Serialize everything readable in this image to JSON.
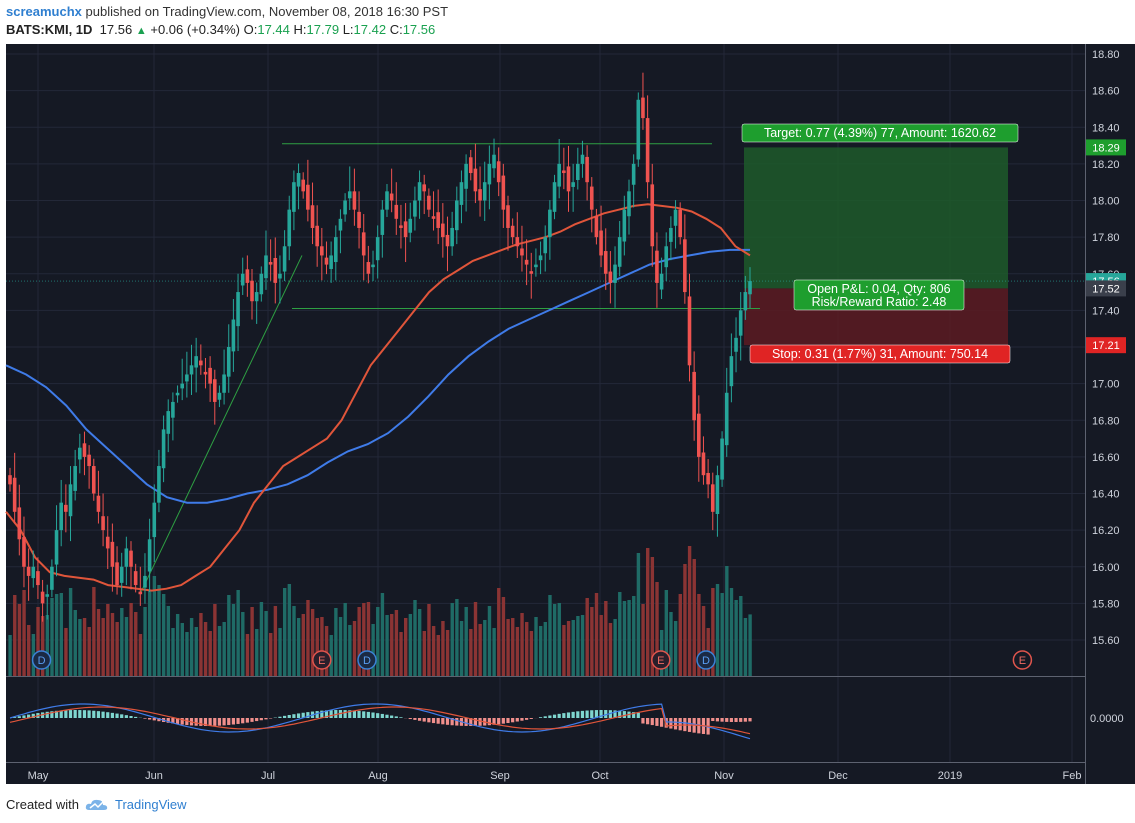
{
  "header": {
    "user": "screamuchx",
    "published": " published on TradingView.com, November 08, 2018 16:30 PST",
    "symbol": "BATS:KMI, 1D",
    "last": "17.56",
    "change": "+0.06 (+0.34%)",
    "o_label": "O:",
    "o": "17.44",
    "h_label": "H:",
    "h": "17.79",
    "l_label": "L:",
    "l": "17.42",
    "c_label": "C:",
    "c": "17.56"
  },
  "footer": {
    "created": "Created with",
    "brand": "TradingView"
  },
  "colors": {
    "background": "#151924",
    "grid": "#232838",
    "up": "#26a69a",
    "down": "#ef5350",
    "vol_up": "#1f6b66",
    "vol_down": "#8b3434",
    "ma_fast": "#e0553a",
    "ma_slow": "#3f7be8",
    "target_zone": "#1d5b2a",
    "stop_zone": "#5c1b22",
    "trendline": "#2ea043"
  },
  "chart_data": {
    "type": "candlestick",
    "symbol": "BATS:KMI",
    "interval": "1D",
    "ylim": [
      15.4,
      18.86
    ],
    "y_ticks": [
      "18.80",
      "18.60",
      "18.40",
      "18.20",
      "18.00",
      "17.80",
      "17.60",
      "17.40",
      "17.20",
      "17.00",
      "16.80",
      "16.60",
      "16.40",
      "16.20",
      "16.00",
      "15.80",
      "15.60"
    ],
    "x_ticks": [
      "May",
      "Jun",
      "Jul",
      "Aug",
      "Sep",
      "Oct",
      "Nov",
      "Dec",
      "2019",
      "Feb"
    ],
    "close_series": [
      16.45,
      16.3,
      16.15,
      16.0,
      15.95,
      16.0,
      15.9,
      15.8,
      15.85,
      16.0,
      16.2,
      16.35,
      16.3,
      16.45,
      16.55,
      16.65,
      16.6,
      16.55,
      16.4,
      16.3,
      16.2,
      16.1,
      16.0,
      15.9,
      16.0,
      16.1,
      16.0,
      15.9,
      15.85,
      15.95,
      16.15,
      16.35,
      16.55,
      16.75,
      16.85,
      16.9,
      16.95,
      17.0,
      17.05,
      17.1,
      17.15,
      17.1,
      17.05,
      17.0,
      16.9,
      16.95,
      17.05,
      17.2,
      17.35,
      17.5,
      17.6,
      17.55,
      17.45,
      17.5,
      17.6,
      17.7,
      17.65,
      17.55,
      17.6,
      17.75,
      17.95,
      18.1,
      18.15,
      18.05,
      17.95,
      17.85,
      17.75,
      17.7,
      17.65,
      17.7,
      17.8,
      17.9,
      18.0,
      18.05,
      17.95,
      17.85,
      17.7,
      17.6,
      17.65,
      17.8,
      17.95,
      18.05,
      18.0,
      17.9,
      17.85,
      17.8,
      17.9,
      18.0,
      18.1,
      18.05,
      17.95,
      17.9,
      17.85,
      17.8,
      17.75,
      17.85,
      18.0,
      18.1,
      18.2,
      18.15,
      18.05,
      18.0,
      18.1,
      18.2,
      18.25,
      18.1,
      17.95,
      17.85,
      17.8,
      17.75,
      17.7,
      17.65,
      17.6,
      17.65,
      17.7,
      17.8,
      17.95,
      18.1,
      18.2,
      18.15,
      18.05,
      18.1,
      18.2,
      18.25,
      18.1,
      17.95,
      17.8,
      17.7,
      17.6,
      17.55,
      17.65,
      17.8,
      17.95,
      18.05,
      18.2,
      18.55,
      18.45,
      18.1,
      17.75,
      17.55,
      17.6,
      17.75,
      17.85,
      17.95,
      17.8,
      17.5,
      17.1,
      16.8,
      16.6,
      16.5,
      16.45,
      16.3,
      16.5,
      16.7,
      16.95,
      17.15,
      17.25,
      17.4,
      17.5,
      17.56
    ],
    "moving_average_fast": [
      16.3,
      16.2,
      16.05,
      15.97,
      15.95,
      15.94,
      15.93,
      15.9,
      15.89,
      15.88,
      15.87,
      15.88,
      15.9,
      15.95,
      16.0,
      16.1,
      16.2,
      16.35,
      16.45,
      16.55,
      16.6,
      16.65,
      16.7,
      16.8,
      16.95,
      17.1,
      17.2,
      17.3,
      17.4,
      17.5,
      17.57,
      17.62,
      17.67,
      17.7,
      17.73,
      17.76,
      17.78,
      17.8,
      17.83,
      17.87,
      17.9,
      17.93,
      17.95,
      17.97,
      17.98,
      17.97,
      17.96,
      17.94,
      17.9,
      17.85,
      17.75,
      17.7
    ],
    "moving_average_slow": [
      17.1,
      17.05,
      16.98,
      16.88,
      16.75,
      16.65,
      16.55,
      16.45,
      16.38,
      16.35,
      16.35,
      16.37,
      16.4,
      16.42,
      16.45,
      16.5,
      16.57,
      16.63,
      16.67,
      16.73,
      16.82,
      16.93,
      17.05,
      17.15,
      17.23,
      17.3,
      17.35,
      17.4,
      17.45,
      17.5,
      17.55,
      17.6,
      17.65,
      17.68,
      17.7,
      17.72,
      17.73,
      17.73
    ],
    "annotations": {
      "target_label": "Target: 0.77 (4.39%) 77, Amount: 1620.62",
      "target_price": "18.29",
      "stop_label": "Stop: 0.31 (1.77%) 31, Amount: 750.14",
      "stop_price": "17.21",
      "pnl_line1": "Open P&L: 0.04, Qty: 806",
      "pnl_line2": "Risk/Reward Ratio: 2.48",
      "entry_price": "17.52",
      "last_price": "17.56",
      "resistance_price": 18.31,
      "support_price": 17.41,
      "event_markers": [
        {
          "label": "D",
          "month_offset": 0.12,
          "kind": "dividend"
        },
        {
          "label": "E",
          "month_offset": 2.6,
          "kind": "earnings"
        },
        {
          "label": "D",
          "month_offset": 3.0,
          "kind": "dividend"
        },
        {
          "label": "E",
          "month_offset": 5.6,
          "kind": "earnings"
        },
        {
          "label": "D",
          "month_offset": 6.0,
          "kind": "dividend"
        },
        {
          "label": "E",
          "month_offset": 8.8,
          "kind": "earnings-future"
        }
      ]
    },
    "macd": {
      "zero_label": "0.0000"
    }
  }
}
